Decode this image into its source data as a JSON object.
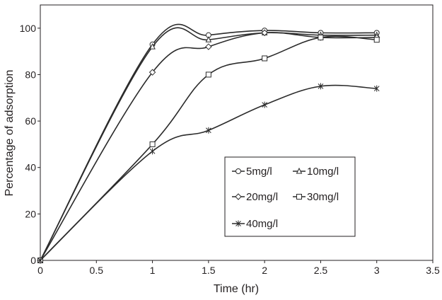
{
  "chart_data": {
    "type": "line",
    "title": "",
    "xlabel": "Time (hr)",
    "ylabel": "Percentage of adsorption",
    "xlim": [
      0,
      3.5
    ],
    "ylim": [
      0,
      110
    ],
    "x_ticks": [
      0,
      0.5,
      1,
      1.5,
      2,
      2.5,
      3,
      3.5
    ],
    "y_ticks": [
      0,
      20,
      40,
      60,
      80,
      100
    ],
    "x_tick_labels": [
      "0",
      "0.5",
      "1",
      "1.5",
      "2",
      "2.5",
      "3",
      "3.5"
    ],
    "y_tick_labels": [
      "0",
      "20",
      "40",
      "60",
      "80",
      "100"
    ],
    "grid": false,
    "legend_position": "center-right",
    "series": [
      {
        "name": "5mg/l",
        "marker": "circle",
        "x": [
          0,
          1,
          1.5,
          2,
          2.5,
          3
        ],
        "y": [
          0,
          93,
          97,
          99,
          98,
          98
        ]
      },
      {
        "name": "10mg/l",
        "marker": "triangle",
        "x": [
          0,
          1,
          1.5,
          2,
          2.5,
          3
        ],
        "y": [
          0,
          92,
          95,
          98,
          97,
          97
        ]
      },
      {
        "name": "20mg/l",
        "marker": "diamond",
        "x": [
          0,
          1,
          1.5,
          2,
          2.5,
          3
        ],
        "y": [
          0,
          81,
          92,
          98,
          96,
          96
        ]
      },
      {
        "name": "30mg/l",
        "marker": "square",
        "x": [
          0,
          1,
          1.5,
          2,
          2.5,
          3
        ],
        "y": [
          0,
          50,
          80,
          87,
          96,
          95
        ]
      },
      {
        "name": "40mg/l",
        "marker": "star",
        "x": [
          0,
          1,
          1.5,
          2,
          2.5,
          3
        ],
        "y": [
          0,
          47,
          56,
          67,
          75,
          74
        ]
      }
    ]
  }
}
